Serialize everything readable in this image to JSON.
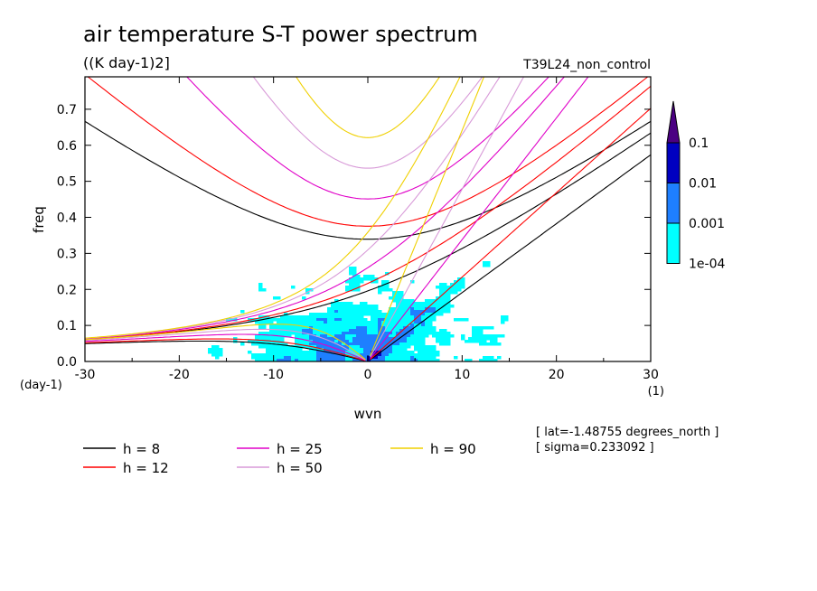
{
  "chart_data": {
    "type": "heatmap",
    "title": "air temperature S-T power spectrum",
    "units": "((K day-1)2]",
    "run_label": "T39L24_non_control",
    "xlabel": "wvn",
    "ylabel": "freq",
    "x_unit": "(1)",
    "y_unit": "(day-1)",
    "xlim": [
      -30,
      30
    ],
    "ylim": [
      0,
      0.79
    ],
    "x_ticks": [
      -30,
      -20,
      -10,
      0,
      10,
      20,
      30
    ],
    "x_tick_labels": [
      "-30",
      "-20",
      "-10",
      "0",
      "10",
      "20",
      "30"
    ],
    "y_ticks": [
      0,
      0.1,
      0.2,
      0.3,
      0.4,
      0.5,
      0.6,
      0.7
    ],
    "y_tick_labels": [
      "0.0",
      "0.1",
      "0.2",
      "0.3",
      "0.4",
      "0.5",
      "0.6",
      "0.7"
    ],
    "colorbar": {
      "levels": [
        "1e-04",
        "0.001",
        "0.01",
        "0.1"
      ],
      "colors": [
        "#00ffff",
        "#1e7fff",
        "#0000c0",
        "#4b0082"
      ]
    },
    "dispersion_curves": [
      {
        "name": "h =  8",
        "equivalent_depth_m": 8,
        "color": "#000000"
      },
      {
        "name": "h = 12",
        "equivalent_depth_m": 12,
        "color": "#ff0000"
      },
      {
        "name": "h = 25",
        "equivalent_depth_m": 25,
        "color": "#e000c8"
      },
      {
        "name": "h = 50",
        "equivalent_depth_m": 50,
        "color": "#d89ad8"
      },
      {
        "name": "h = 90",
        "equivalent_depth_m": 90,
        "color": "#f0d000"
      }
    ],
    "annotations": [
      "[ lat=-1.48755 degrees_north ]",
      "[ sigma=0.233092 ]"
    ]
  }
}
